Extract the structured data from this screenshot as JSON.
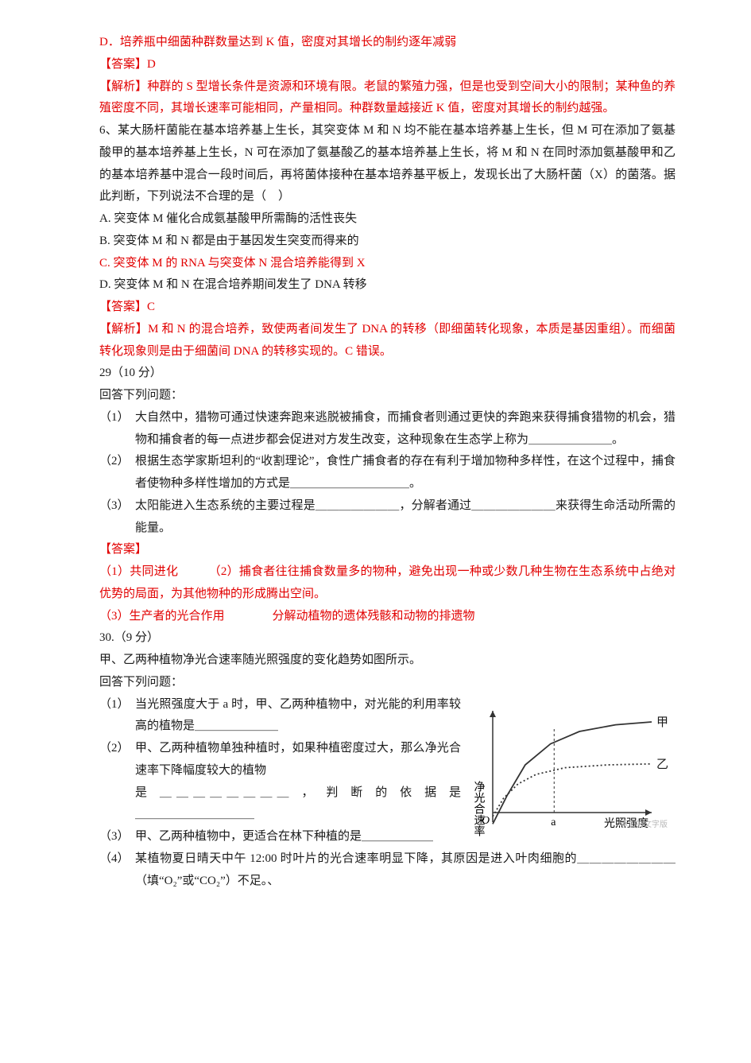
{
  "q5": {
    "optD": "D．培养瓶中细菌种群数量达到 K 值，密度对其增长的制约逐年减弱",
    "ans_label": "【答案】D",
    "exp": "【解析】种群的 S 型增长条件是资源和环境有限。老鼠的繁殖力强，但是也受到空间大小的限制；某种鱼的养殖密度不同，其增长速率可能相同，产量相同。种群数量越接近 K 值，密度对其增长的制约越强。"
  },
  "q6": {
    "stem": "6、某大肠杆菌能在基本培养基上生长，其突变体 M 和 N 均不能在基本培养基上生长，但 M 可在添加了氨基酸甲的基本培养基上生长，N 可在添加了氨基酸乙的基本培养基上生长，将 M 和 N 在同时添加氨基酸甲和乙的基本培养基中混合一段时间后，再将菌体接种在基本培养基平板上，发现长出了大肠杆菌（X）的菌落。据此判断，下列说法不合理的是（　）",
    "A": "A. 突变体 M 催化合成氨基酸甲所需酶的活性丧失",
    "B": "B. 突变体 M 和 N 都是由于基因发生突变而得来的",
    "C": "C. 突变体 M 的 RNA 与突变体 N 混合培养能得到 X",
    "D": "D. 突变体 M 和 N 在混合培养期间发生了 DNA 转移",
    "ans_label": "【答案】C",
    "exp": "【解析】M 和 N 的混合培养，致使两者间发生了 DNA 的转移（即细菌转化现象，本质是基因重组）。而细菌转化现象则是由于细菌间 DNA 的转移实现的。C 错误。"
  },
  "q29": {
    "header": "29（10 分）",
    "intro": "回答下列问题：",
    "p1n": "（1）",
    "p1": "大自然中，猎物可通过快速奔跑来逃脱被捕食，而捕食者则通过更快的奔跑来获得捕食猎物的机会，猎物和捕食者的每一点进步都会促进对方发生改变，这种现象在生态学上称为＿＿＿＿＿＿＿。",
    "p2n": "（2）",
    "p2": "根据生态学家斯坦利的“收割理论”，食性广捕食者的存在有利于增加物种多样性，在这个过程中，捕食者使物种多样性增加的方式是＿＿＿＿＿＿＿＿＿＿。",
    "p3n": "（3）",
    "p3": "太阳能进入生态系统的主要过程是＿＿＿＿＿＿＿，分解者通过＿＿＿＿＿＿＿来获得生命活动所需的能量。",
    "ans_label": "【答案】",
    "a1": "（1）共同进化　　　（2）捕食者往往捕食数量多的物种，避免出现一种或少数几种生物在生态系统中占绝对优势的局面，为其他物种的形成腾出空间。",
    "a3": "（3）生产者的光合作用　　　　分解动植物的遗体残骸和动物的排遗物"
  },
  "q30": {
    "header": "30.（9 分）",
    "intro1": "甲、乙两种植物净光合速率随光照强度的变化趋势如图所示。",
    "intro2": "回答下列问题：",
    "p1n": "（1）",
    "p1": "当光照强度大于 a 时，甲、乙两种植物中，对光能的利用率较高的植物是＿＿＿＿＿＿＿",
    "p2n": "（2）",
    "p2a": "甲、乙两种植物单独种植时，如果种植密度过大，那么净光合速率下降幅度较大的植物",
    "p2b": "是 ＿＿＿＿＿＿＿＿ ， 判 断 的 依 据 是",
    "p2c": "＿＿＿＿＿＿＿＿＿＿",
    "p3n": "（3）",
    "p3": "甲、乙两种植物中，更适合在林下种植的是＿＿＿＿＿＿",
    "p4n": "（4）",
    "p4": "某植物夏日晴天中午 12:00 时叶片的光合速率明显下降，其原因是进入叶肉细胞的＿＿＿＿＿＿＿＿（填“O₂”或“CO₂”）不足。、"
  },
  "chart": {
    "type": "line",
    "x_label": "光照强度",
    "y_label": "净光合速率",
    "series": [
      {
        "name": "甲",
        "color": "#333333",
        "style": "solid",
        "points": [
          [
            0,
            -12
          ],
          [
            20,
            18
          ],
          [
            45,
            50
          ],
          [
            80,
            72
          ],
          [
            120,
            85
          ],
          [
            170,
            92
          ],
          [
            220,
            95
          ]
        ]
      },
      {
        "name": "乙",
        "color": "#333333",
        "style": "dotted",
        "points": [
          [
            0,
            -4
          ],
          [
            15,
            15
          ],
          [
            35,
            30
          ],
          [
            60,
            40
          ],
          [
            100,
            47
          ],
          [
            160,
            50
          ],
          [
            220,
            51
          ]
        ]
      }
    ],
    "a_tick": 85,
    "axis_color": "#333333",
    "label_a": "a",
    "origin": "O",
    "watermark": "添加的文字版"
  }
}
